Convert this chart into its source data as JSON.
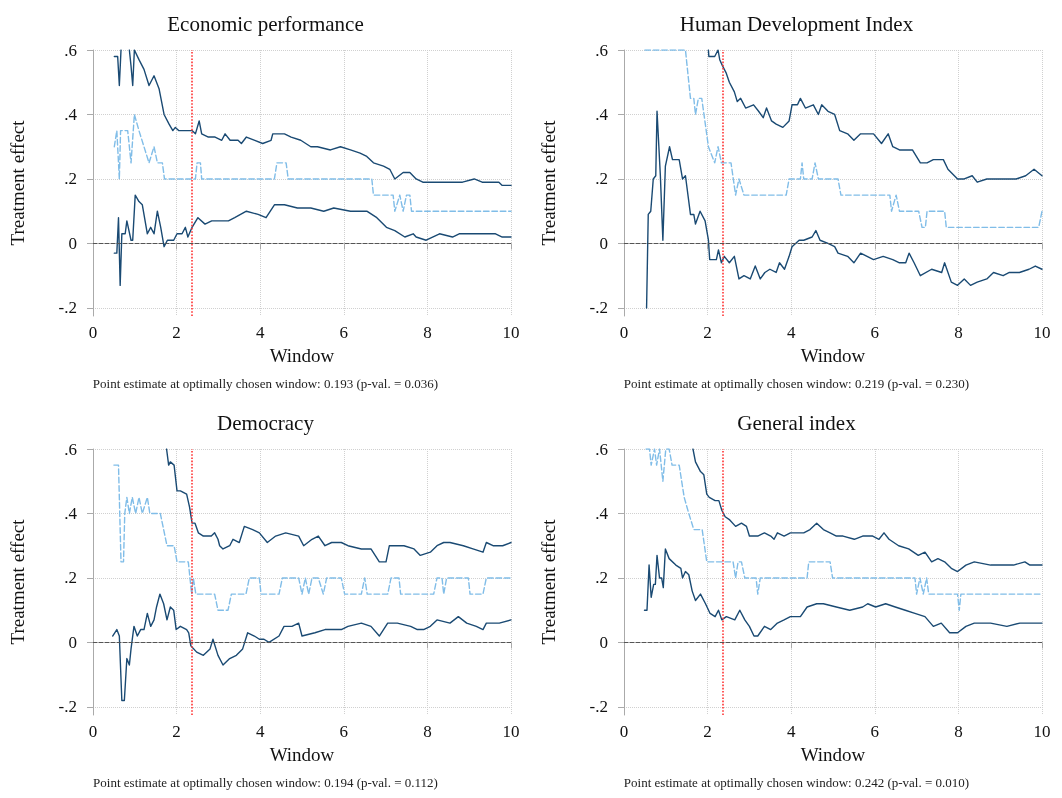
{
  "chart_data": [
    {
      "type": "line",
      "title": "Economic performance",
      "xlabel": "Window",
      "ylabel": "Treatment effect",
      "xlim": [
        0,
        10
      ],
      "xticks": [
        0,
        2,
        4,
        6,
        8,
        10
      ],
      "ylim": [
        -0.225,
        0.6
      ],
      "yticks": [
        {
          "value": -0.2,
          "label": "-.2"
        },
        {
          "value": 0,
          "label": "0"
        },
        {
          "value": 0.2,
          "label": ".2"
        },
        {
          "value": 0.4,
          "label": ".4"
        },
        {
          "value": 0.6,
          "label": ".6"
        }
      ],
      "grid": true,
      "marker": "none",
      "annotations": [
        "Point estimate at optimally chosen window: 0.193 (p-val. = 0.036)"
      ],
      "ref_lines": [
        {
          "axis": "y",
          "value": 0,
          "color": "#555555",
          "line_style": "dashed"
        },
        {
          "axis": "x",
          "value": 2.37,
          "color": "#ff3333",
          "line_style": "dotted"
        }
      ],
      "series": [
        {
          "color": "#1a4a73",
          "line_style": "solid",
          "x": [
            0.51,
            0.59,
            0.63,
            0.67,
            0.77,
            0.87,
            0.91,
            0.95,
            0.99,
            1.1,
            1.22,
            1.34,
            1.46,
            1.58,
            1.7,
            1.82,
            1.91,
            1.97,
            2.05,
            2.21,
            2.37,
            2.45,
            2.54,
            2.6,
            2.76,
            2.92,
            3.08,
            3.16,
            3.28,
            3.47,
            3.55,
            3.67,
            3.87,
            4.06,
            4.26,
            4.3,
            4.58,
            4.74,
            4.97,
            5.21,
            5.37,
            5.68,
            5.92,
            6.16,
            6.39,
            6.55,
            6.71,
            6.95,
            7.1,
            7.22,
            7.42,
            7.58,
            7.73,
            7.89,
            8.21,
            8.52,
            8.84,
            9.12,
            9.31,
            9.71,
            9.79,
            10
          ],
          "values": [
            0.58,
            0.58,
            0.49,
            0.6,
            null,
            0.6,
            0.55,
            0.49,
            0.6,
            0.57,
            0.54,
            0.49,
            0.52,
            0.48,
            0.4,
            0.37,
            0.35,
            0.36,
            0.35,
            0.35,
            0.35,
            0.34,
            0.38,
            0.34,
            0.33,
            0.33,
            0.32,
            0.34,
            0.32,
            0.32,
            0.31,
            0.33,
            0.32,
            0.31,
            0.32,
            0.34,
            0.34,
            0.33,
            0.32,
            0.3,
            0.3,
            0.29,
            0.3,
            0.29,
            0.28,
            0.27,
            0.25,
            0.24,
            0.23,
            0.2,
            0.22,
            0.22,
            0.2,
            0.19,
            0.19,
            0.19,
            0.19,
            0.2,
            0.19,
            0.19,
            0.18,
            0.18
          ]
        },
        {
          "color": "#80bde8",
          "line_style": "dashed",
          "x": [
            0.51,
            0.57,
            0.63,
            0.66,
            0.83,
            0.91,
            0.99,
            1.1,
            1.22,
            1.34,
            1.46,
            1.54,
            1.66,
            1.71,
            2.45,
            2.49,
            2.57,
            2.6,
            4.34,
            4.4,
            4.62,
            4.67,
            6.67,
            6.71,
            7.18,
            7.22,
            7.34,
            7.42,
            7.5,
            7.58,
            7.62,
            10
          ],
          "values": [
            0.3,
            0.35,
            0.2,
            0.35,
            0.35,
            0.25,
            0.4,
            0.35,
            0.3,
            0.25,
            0.3,
            0.25,
            0.25,
            0.2,
            0.2,
            0.25,
            0.25,
            0.2,
            0.2,
            0.25,
            0.25,
            0.2,
            0.2,
            0.15,
            0.15,
            0.1,
            0.15,
            0.1,
            0.15,
            0.15,
            0.1,
            0.1
          ]
        },
        {
          "color": "#1a4a73",
          "line_style": "solid",
          "x": [
            0.51,
            0.57,
            0.61,
            0.65,
            0.69,
            0.77,
            0.81,
            0.91,
            0.95,
            1.01,
            1.1,
            1.18,
            1.3,
            1.38,
            1.46,
            1.54,
            1.62,
            1.7,
            1.78,
            1.93,
            2.01,
            2.13,
            2.21,
            2.27,
            2.37,
            2.51,
            2.68,
            2.84,
            3.0,
            3.24,
            3.39,
            3.67,
            3.95,
            4.14,
            4.34,
            4.58,
            4.89,
            5.21,
            5.52,
            5.76,
            6.16,
            6.55,
            6.79,
            7.02,
            7.22,
            7.46,
            7.66,
            7.73,
            7.97,
            8.29,
            8.6,
            8.76,
            9.08,
            9.31,
            9.63,
            9.79,
            10
          ],
          "values": [
            -0.03,
            -0.03,
            0.08,
            -0.13,
            0.03,
            0.03,
            0.07,
            0.01,
            0.01,
            0.15,
            0.13,
            0.12,
            0.03,
            0.05,
            0.03,
            0.1,
            0.05,
            -0.01,
            0.01,
            0.01,
            0.03,
            0.03,
            0.05,
            0.02,
            0.05,
            0.08,
            0.06,
            0.07,
            0.07,
            0.07,
            0.08,
            0.1,
            0.09,
            0.08,
            0.12,
            0.12,
            0.11,
            0.11,
            0.1,
            0.11,
            0.1,
            0.1,
            0.08,
            0.05,
            0.04,
            0.02,
            0.03,
            0.02,
            0.01,
            0.03,
            0.02,
            0.03,
            0.03,
            0.03,
            0.03,
            0.02,
            0.02
          ]
        }
      ]
    },
    {
      "type": "line",
      "title": "Human Development Index",
      "xlabel": "Window",
      "ylabel": "Treatment effect",
      "xlim": [
        0,
        10
      ],
      "xticks": [
        0,
        2,
        4,
        6,
        8,
        10
      ],
      "ylim": [
        -0.225,
        0.6
      ],
      "yticks": [
        {
          "value": -0.2,
          "label": "-.2"
        },
        {
          "value": 0,
          "label": "0"
        },
        {
          "value": 0.2,
          "label": ".2"
        },
        {
          "value": 0.4,
          "label": ".4"
        },
        {
          "value": 0.6,
          "label": ".6"
        }
      ],
      "grid": true,
      "marker": "none",
      "annotations": [
        "Point estimate at optimally chosen window: 0.219 (p-val. = 0.230)"
      ],
      "ref_lines": [
        {
          "axis": "y",
          "value": 0,
          "color": "#555555",
          "line_style": "dashed"
        },
        {
          "axis": "x",
          "value": 2.36,
          "color": "#ff3333",
          "line_style": "dotted"
        }
      ],
      "series": [
        {
          "color": "#1a4a73",
          "line_style": "solid",
          "x": [
            2.02,
            2.03,
            2.17,
            2.25,
            2.29,
            2.36,
            2.44,
            2.52,
            2.64,
            2.71,
            2.79,
            2.91,
            3.1,
            3.22,
            3.33,
            3.41,
            3.53,
            3.64,
            3.8,
            3.95,
            4.02,
            4.15,
            4.22,
            4.34,
            4.53,
            4.65,
            4.73,
            4.88,
            5.04,
            5.16,
            5.35,
            5.5,
            5.66,
            5.97,
            6.16,
            6.32,
            6.43,
            6.59,
            6.9,
            7.09,
            7.25,
            7.4,
            7.52,
            7.64,
            7.75,
            7.98,
            8.14,
            8.33,
            8.45,
            8.68,
            9.07,
            9.38,
            9.61,
            9.81,
            10
          ],
          "values": [
            0.6,
            0.58,
            0.58,
            0.6,
            0.57,
            0.55,
            0.53,
            0.5,
            0.47,
            0.44,
            0.45,
            0.42,
            0.43,
            0.41,
            0.39,
            0.42,
            0.38,
            0.37,
            0.36,
            0.38,
            0.43,
            0.43,
            0.45,
            0.42,
            0.43,
            0.4,
            0.43,
            0.41,
            0.4,
            0.35,
            0.34,
            0.32,
            0.34,
            0.34,
            0.31,
            0.34,
            0.3,
            0.29,
            0.29,
            0.25,
            0.25,
            0.26,
            0.26,
            0.26,
            0.23,
            0.2,
            0.2,
            0.21,
            0.19,
            0.2,
            0.2,
            0.2,
            0.21,
            0.23,
            0.21
          ]
        },
        {
          "color": "#80bde8",
          "line_style": "dashed",
          "x": [
            0.5,
            1.47,
            1.59,
            1.67,
            1.71,
            1.78,
            1.86,
            2.02,
            2.17,
            2.25,
            2.33,
            2.56,
            2.67,
            2.75,
            2.87,
            3.88,
            3.95,
            4.22,
            4.26,
            4.3,
            4.5,
            4.57,
            4.65,
            5.12,
            5.19,
            6.36,
            6.4,
            6.51,
            6.59,
            7.05,
            7.13,
            7.21,
            7.25,
            7.67,
            7.71,
            9.92,
            10
          ],
          "values": [
            0.6,
            0.6,
            0.45,
            0.45,
            0.4,
            0.45,
            0.45,
            0.3,
            0.25,
            0.3,
            0.25,
            0.25,
            0.15,
            0.2,
            0.15,
            0.15,
            0.2,
            0.2,
            0.25,
            0.2,
            0.2,
            0.25,
            0.2,
            0.2,
            0.15,
            0.15,
            0.1,
            0.15,
            0.1,
            0.1,
            0.05,
            0.05,
            0.1,
            0.1,
            0.05,
            0.05,
            0.1
          ]
        },
        {
          "color": "#1a4a73",
          "line_style": "solid",
          "x": [
            0.54,
            0.58,
            0.64,
            0.7,
            0.76,
            0.79,
            0.87,
            0.93,
            0.99,
            1.09,
            1.16,
            1.32,
            1.4,
            1.47,
            1.59,
            1.67,
            1.71,
            1.82,
            1.94,
            2.02,
            2.05,
            2.21,
            2.26,
            2.33,
            2.4,
            2.52,
            2.64,
            2.75,
            2.87,
            3.02,
            3.14,
            3.26,
            3.37,
            3.49,
            3.64,
            3.72,
            3.84,
            3.95,
            4.02,
            4.19,
            4.3,
            4.5,
            4.59,
            4.69,
            4.88,
            5.04,
            5.12,
            5.35,
            5.5,
            5.66,
            5.97,
            6.2,
            6.43,
            6.59,
            6.74,
            6.82,
            6.94,
            7.09,
            7.36,
            7.6,
            7.67,
            7.83,
            7.98,
            8.14,
            8.29,
            8.45,
            8.68,
            8.84,
            9.07,
            9.22,
            9.46,
            9.69,
            9.84,
            10
          ],
          "values": [
            -0.2,
            0.09,
            0.1,
            0.2,
            0.21,
            0.41,
            0.21,
            0.01,
            0.24,
            0.3,
            0.26,
            0.26,
            0.2,
            0.21,
            0.09,
            0.09,
            0.06,
            0.1,
            0.07,
            0.01,
            -0.05,
            -0.05,
            -0.02,
            -0.06,
            -0.04,
            -0.06,
            -0.04,
            -0.11,
            -0.1,
            -0.11,
            -0.07,
            -0.11,
            -0.09,
            -0.08,
            -0.09,
            -0.06,
            -0.08,
            -0.04,
            -0.01,
            0.01,
            0.01,
            0.02,
            0.04,
            0.01,
            0.0,
            -0.01,
            -0.03,
            -0.04,
            -0.06,
            -0.03,
            -0.05,
            -0.04,
            -0.05,
            -0.06,
            -0.06,
            -0.03,
            -0.06,
            -0.1,
            -0.08,
            -0.09,
            -0.06,
            -0.12,
            -0.13,
            -0.11,
            -0.13,
            -0.12,
            -0.11,
            -0.09,
            -0.1,
            -0.09,
            -0.09,
            -0.08,
            -0.07,
            -0.08
          ]
        }
      ]
    },
    {
      "type": "line",
      "title": "Democracy",
      "xlabel": "Window",
      "ylabel": "Treatment effect",
      "xlim": [
        0,
        10
      ],
      "xticks": [
        0,
        2,
        4,
        6,
        8,
        10
      ],
      "ylim": [
        -0.225,
        0.6
      ],
      "yticks": [
        {
          "value": -0.2,
          "label": "-.2"
        },
        {
          "value": 0,
          "label": "0"
        },
        {
          "value": 0.2,
          "label": ".2"
        },
        {
          "value": 0.4,
          "label": ".4"
        },
        {
          "value": 0.6,
          "label": ".6"
        }
      ],
      "grid": true,
      "marker": "none",
      "annotations": [
        "Point estimate at optimally chosen window: 0.194 (p-val. = 0.112)"
      ],
      "ref_lines": [
        {
          "axis": "y",
          "value": 0,
          "color": "#555555",
          "line_style": "dashed"
        },
        {
          "axis": "x",
          "value": 2.36,
          "color": "#ff3333",
          "line_style": "dotted"
        }
      ],
      "series": [
        {
          "color": "#1a4a73",
          "line_style": "solid",
          "x": [
            1.76,
            1.81,
            1.85,
            1.94,
            2.01,
            2.09,
            2.24,
            2.31,
            2.37,
            2.44,
            2.52,
            2.64,
            2.83,
            2.91,
            2.99,
            3.03,
            3.11,
            3.27,
            3.35,
            3.5,
            3.62,
            3.82,
            3.98,
            4.17,
            4.37,
            4.61,
            4.92,
            5.04,
            5.24,
            5.39,
            5.55,
            5.71,
            5.94,
            6.1,
            6.42,
            6.65,
            6.85,
            7.01,
            7.09,
            7.28,
            7.44,
            7.68,
            7.83,
            8.07,
            8.23,
            8.39,
            8.54,
            8.86,
            9.09,
            9.33,
            9.41,
            9.57,
            9.8,
            10
          ],
          "values": [
            0.6,
            0.55,
            0.56,
            0.55,
            0.47,
            0.47,
            0.46,
            0.42,
            0.37,
            0.37,
            0.34,
            0.33,
            0.33,
            0.34,
            0.32,
            0.3,
            0.29,
            0.3,
            0.32,
            0.31,
            0.36,
            0.35,
            0.34,
            0.31,
            0.33,
            0.34,
            0.33,
            0.3,
            0.32,
            0.33,
            0.3,
            0.31,
            0.31,
            0.3,
            0.29,
            0.29,
            0.25,
            0.25,
            0.3,
            0.3,
            0.3,
            0.29,
            0.27,
            0.28,
            0.3,
            0.31,
            0.31,
            0.3,
            0.29,
            0.28,
            0.31,
            0.3,
            0.3,
            0.31
          ]
        },
        {
          "color": "#80bde8",
          "line_style": "dashed",
          "x": [
            0.5,
            0.61,
            0.67,
            0.73,
            0.76,
            0.81,
            0.87,
            0.94,
            1.02,
            1.1,
            1.18,
            1.3,
            1.36,
            1.61,
            1.77,
            1.94,
            2.01,
            2.28,
            2.36,
            2.4,
            2.46,
            2.91,
            2.99,
            3.23,
            3.31,
            3.66,
            3.74,
            3.98,
            4.02,
            4.45,
            4.53,
            4.92,
            5.0,
            5.08,
            5.16,
            5.24,
            5.39,
            5.51,
            5.59,
            5.94,
            6.02,
            6.42,
            6.5,
            6.56,
            7.05,
            7.13,
            7.32,
            7.36,
            8.15,
            8.23,
            8.35,
            8.39,
            8.46,
            8.98,
            9.02,
            9.33,
            9.41,
            10
          ],
          "values": [
            0.55,
            0.55,
            0.25,
            0.25,
            0.4,
            0.45,
            0.4,
            0.45,
            0.4,
            0.45,
            0.4,
            0.45,
            0.4,
            0.4,
            0.3,
            0.3,
            0.25,
            0.25,
            0.15,
            0.2,
            0.15,
            0.15,
            0.1,
            0.1,
            0.15,
            0.15,
            0.2,
            0.2,
            0.15,
            0.15,
            0.2,
            0.2,
            0.15,
            0.2,
            0.15,
            0.2,
            0.2,
            0.15,
            0.2,
            0.2,
            0.15,
            0.15,
            0.2,
            0.15,
            0.15,
            0.2,
            0.2,
            0.15,
            0.15,
            0.2,
            0.2,
            0.15,
            0.2,
            0.2,
            0.15,
            0.15,
            0.2,
            0.2
          ]
        },
        {
          "color": "#1a4a73",
          "line_style": "solid",
          "x": [
            0.47,
            0.57,
            0.63,
            0.69,
            0.75,
            0.81,
            0.87,
            0.91,
            0.98,
            1.06,
            1.14,
            1.22,
            1.3,
            1.38,
            1.46,
            1.52,
            1.6,
            1.69,
            1.77,
            1.85,
            1.93,
            1.99,
            2.09,
            2.24,
            2.29,
            2.34,
            2.48,
            2.64,
            2.8,
            2.87,
            2.99,
            3.11,
            3.27,
            3.43,
            3.58,
            3.7,
            3.86,
            3.98,
            4.09,
            4.21,
            4.45,
            4.57,
            4.76,
            4.92,
            5.0,
            5.31,
            5.55,
            5.79,
            5.94,
            6.1,
            6.42,
            6.65,
            6.85,
            7.05,
            7.28,
            7.6,
            7.76,
            7.91,
            8.07,
            8.23,
            8.54,
            8.74,
            8.94,
            9.17,
            9.33,
            9.41,
            9.72,
            10
          ],
          "values": [
            0.02,
            0.04,
            0.02,
            -0.18,
            -0.18,
            -0.05,
            -0.07,
            -0.02,
            0.05,
            0.02,
            0.04,
            0.04,
            0.09,
            0.05,
            0.07,
            0.11,
            0.15,
            0.12,
            0.07,
            0.11,
            0.1,
            0.04,
            0.05,
            0.04,
            0.03,
            -0.01,
            -0.03,
            -0.04,
            -0.02,
            0.01,
            -0.04,
            -0.07,
            -0.05,
            -0.04,
            -0.02,
            0.03,
            0.02,
            0.01,
            0.01,
            0.0,
            0.02,
            0.05,
            0.05,
            0.06,
            0.02,
            0.03,
            0.04,
            0.04,
            0.04,
            0.05,
            0.06,
            0.05,
            0.02,
            0.06,
            0.06,
            0.05,
            0.04,
            0.04,
            0.05,
            0.07,
            0.06,
            0.08,
            0.06,
            0.05,
            0.04,
            0.06,
            0.06,
            0.07
          ]
        }
      ]
    },
    {
      "type": "line",
      "title": "General index",
      "xlabel": "Window",
      "ylabel": "Treatment effect",
      "xlim": [
        0,
        10
      ],
      "xticks": [
        0,
        2,
        4,
        6,
        8,
        10
      ],
      "ylim": [
        -0.225,
        0.6
      ],
      "yticks": [
        {
          "value": -0.2,
          "label": "-.2"
        },
        {
          "value": 0,
          "label": "0"
        },
        {
          "value": 0.2,
          "label": ".2"
        },
        {
          "value": 0.4,
          "label": ".4"
        },
        {
          "value": 0.6,
          "label": ".6"
        }
      ],
      "grid": true,
      "marker": "none",
      "annotations": [
        "Point estimate at optimally chosen window: 0.242 (p-val. = 0.010)"
      ],
      "ref_lines": [
        {
          "axis": "y",
          "value": 0,
          "color": "#555555",
          "line_style": "dashed"
        },
        {
          "axis": "x",
          "value": 2.36,
          "color": "#ff3333",
          "line_style": "dotted"
        }
      ],
      "series": [
        {
          "color": "#1a4a73",
          "line_style": "solid",
          "x": [
            1.65,
            1.71,
            1.83,
            1.91,
            1.98,
            2.04,
            2.18,
            2.27,
            2.34,
            2.42,
            2.53,
            2.67,
            2.81,
            2.93,
            3.0,
            3.2,
            3.36,
            3.51,
            3.59,
            3.67,
            3.83,
            3.98,
            4.14,
            4.3,
            4.45,
            4.61,
            4.77,
            4.93,
            5.08,
            5.24,
            5.51,
            5.71,
            5.95,
            6.1,
            6.22,
            6.34,
            6.57,
            6.81,
            7.04,
            7.2,
            7.36,
            7.51,
            7.67,
            7.83,
            7.98,
            8.18,
            8.38,
            8.77,
            9.16,
            9.32,
            9.59,
            9.71,
            10
          ],
          "values": [
            0.6,
            0.56,
            0.53,
            0.52,
            0.46,
            0.45,
            0.44,
            0.44,
            0.41,
            0.39,
            0.38,
            0.36,
            0.37,
            0.36,
            0.33,
            0.33,
            0.34,
            0.33,
            0.32,
            0.34,
            0.33,
            0.34,
            0.34,
            0.34,
            0.35,
            0.37,
            0.35,
            0.34,
            0.33,
            0.33,
            0.32,
            0.33,
            0.33,
            0.32,
            0.34,
            0.32,
            0.3,
            0.29,
            0.27,
            0.28,
            0.25,
            0.26,
            0.25,
            0.23,
            0.22,
            0.24,
            0.25,
            0.24,
            0.24,
            0.24,
            0.25,
            0.24,
            0.24
          ]
        },
        {
          "color": "#80bde8",
          "line_style": "dashed",
          "x": [
            0.53,
            0.61,
            0.65,
            0.73,
            0.78,
            0.85,
            0.93,
            1.0,
            1.08,
            1.15,
            1.32,
            1.44,
            1.55,
            1.67,
            1.87,
            1.98,
            2.61,
            2.67,
            2.73,
            2.81,
            2.89,
            3.16,
            3.2,
            3.26,
            4.38,
            4.42,
            4.93,
            4.99,
            6.96,
            7.0,
            7.08,
            7.16,
            7.24,
            7.29,
            7.98,
            8.02,
            8.06,
            10
          ],
          "values": [
            0.6,
            0.6,
            0.55,
            0.6,
            0.55,
            0.6,
            0.5,
            0.6,
            0.6,
            0.55,
            0.55,
            0.45,
            0.4,
            0.35,
            0.35,
            0.25,
            0.25,
            0.2,
            0.25,
            0.25,
            0.2,
            0.2,
            0.15,
            0.2,
            0.2,
            0.25,
            0.25,
            0.2,
            0.2,
            0.15,
            0.2,
            0.15,
            0.2,
            0.15,
            0.15,
            0.1,
            0.15,
            0.15
          ]
        },
        {
          "color": "#1a4a73",
          "line_style": "solid",
          "x": [
            0.49,
            0.55,
            0.6,
            0.65,
            0.71,
            0.75,
            0.79,
            0.85,
            0.9,
            0.94,
            0.99,
            1.08,
            1.24,
            1.36,
            1.4,
            1.47,
            1.55,
            1.63,
            1.71,
            1.83,
            1.95,
            2.06,
            2.18,
            2.26,
            2.34,
            2.45,
            2.65,
            2.77,
            2.89,
            3.0,
            3.11,
            3.2,
            3.36,
            3.51,
            3.67,
            3.83,
            3.98,
            4.22,
            4.38,
            4.61,
            4.77,
            5.08,
            5.4,
            5.71,
            5.83,
            6.02,
            6.26,
            6.49,
            6.73,
            6.96,
            7.2,
            7.4,
            7.59,
            7.79,
            7.98,
            8.18,
            8.38,
            8.77,
            9.16,
            9.47,
            9.79,
            10
          ],
          "values": [
            0.1,
            0.1,
            0.24,
            0.14,
            0.18,
            0.18,
            0.27,
            0.2,
            0.2,
            0.17,
            0.29,
            0.26,
            0.24,
            0.23,
            0.2,
            0.22,
            0.21,
            0.16,
            0.13,
            0.15,
            0.12,
            0.09,
            0.08,
            0.1,
            0.07,
            0.08,
            0.07,
            0.1,
            0.07,
            0.05,
            0.02,
            0.02,
            0.05,
            0.04,
            0.06,
            0.07,
            0.08,
            0.08,
            0.11,
            0.12,
            0.12,
            0.11,
            0.1,
            0.11,
            0.12,
            0.11,
            0.12,
            0.11,
            0.1,
            0.09,
            0.08,
            0.05,
            0.06,
            0.03,
            0.03,
            0.05,
            0.06,
            0.06,
            0.05,
            0.06,
            0.06,
            0.06
          ]
        }
      ]
    }
  ]
}
